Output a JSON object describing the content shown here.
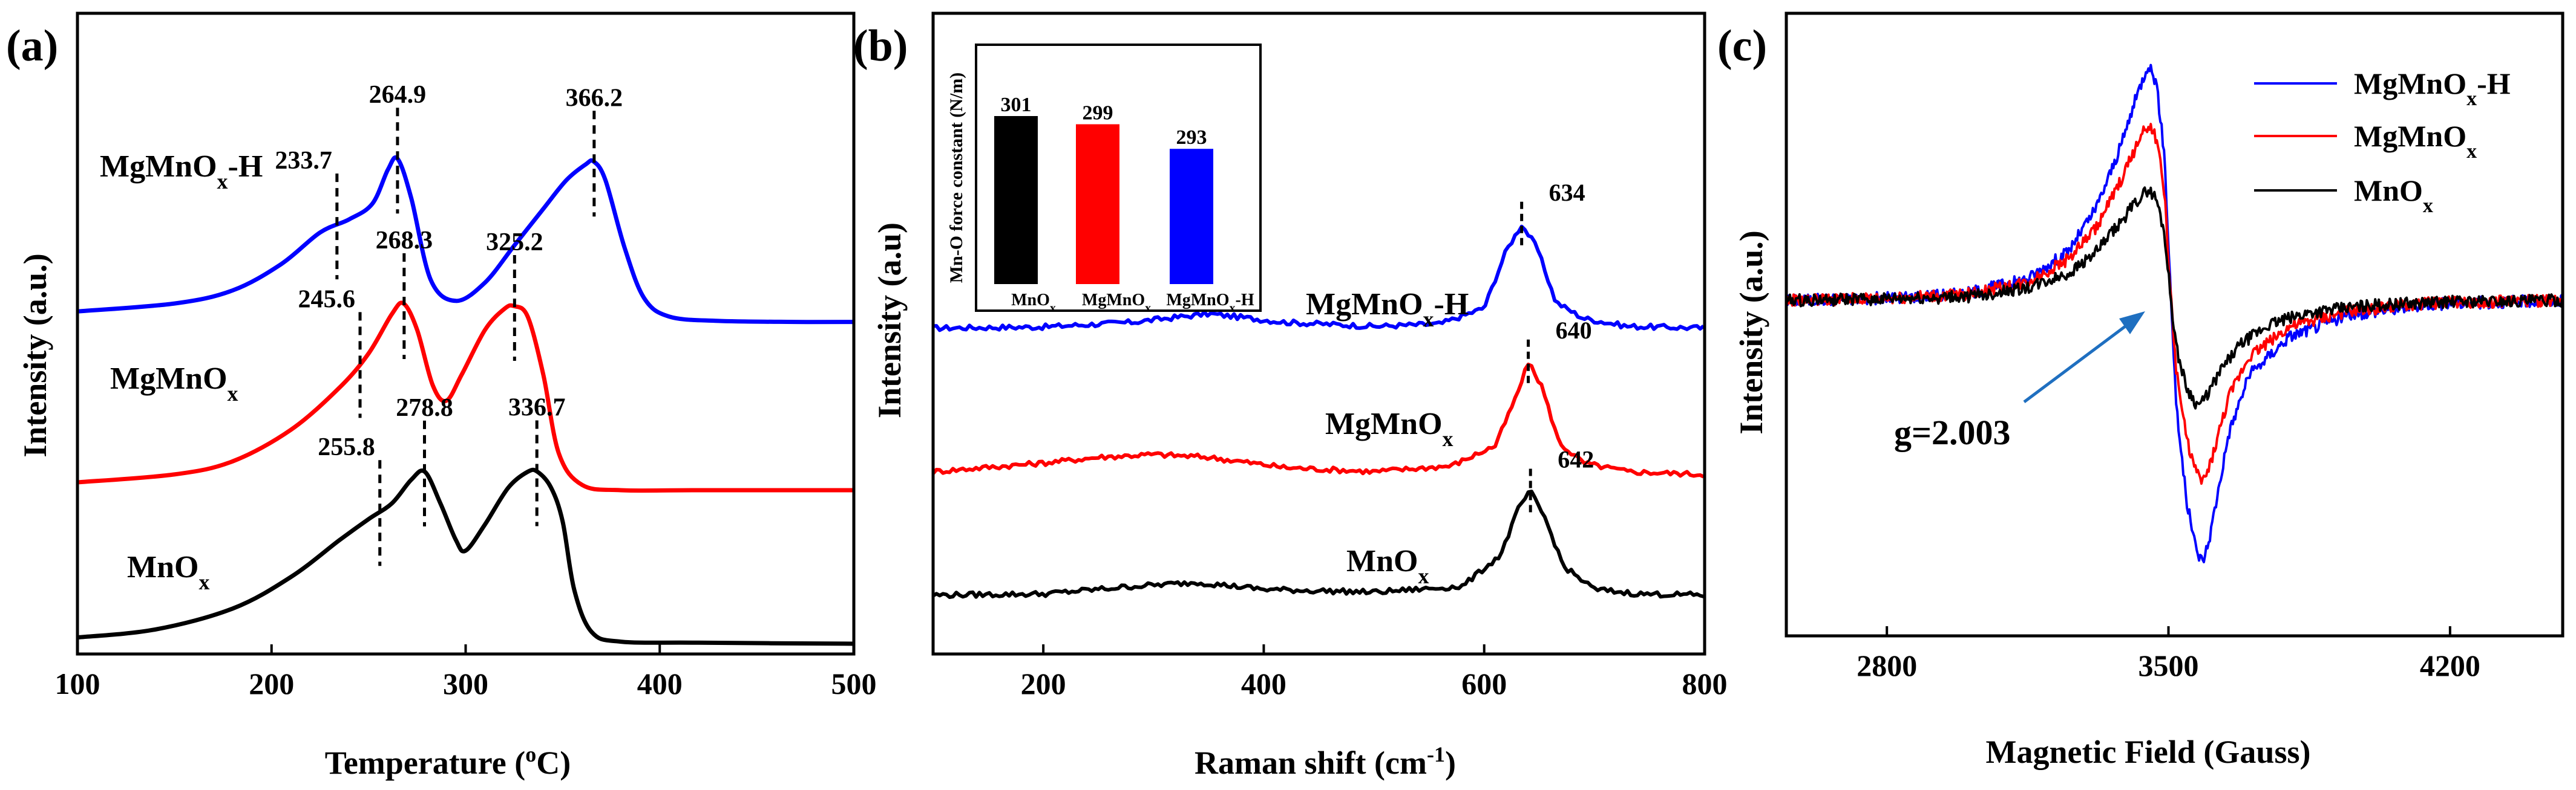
{
  "panels": {
    "a": {
      "label": "(a)",
      "xlabel": "Temperature (°C)",
      "xlabel_parts": {
        "pre": "Temperature (",
        "sup": "o",
        "post": "C)"
      },
      "ylabel": "Intensity (a.u.)",
      "xticks": [
        "100",
        "200",
        "300",
        "400",
        "500"
      ]
    },
    "b": {
      "label": "(b)",
      "xlabel": "Raman shift (cm-1)",
      "xlabel_parts": {
        "pre": "Raman shift (cm",
        "sup": "-1",
        "post": ")"
      },
      "ylabel": "Intensity (a.u)",
      "xticks": [
        "200",
        "400",
        "600",
        "800"
      ]
    },
    "c": {
      "label": "(c)",
      "xlabel": "Magnetic Field (Gauss)",
      "ylabel": "Intensity (a.u.)",
      "xticks": [
        "2800",
        "3500",
        "4200"
      ],
      "annotation": "g=2.003"
    }
  },
  "series_labels": {
    "MgMnOx-H": {
      "base": "MgMnO",
      "sub": "x",
      "tail": "-H"
    },
    "MgMnOx": {
      "base": "MgMnO",
      "sub": "x",
      "tail": ""
    },
    "MnOx": {
      "base": "MnO",
      "sub": "x",
      "tail": ""
    }
  },
  "colors": {
    "MgMnOx-H": "#0000ff",
    "MgMnOx": "#ff0000",
    "MnOx": "#000000"
  },
  "chart_data": [
    {
      "type": "line",
      "title": "(a)",
      "xlabel": "Temperature (°C)",
      "ylabel": "Intensity (a.u.)",
      "xlim": [
        100,
        500
      ],
      "ylim": [
        0,
        10
      ],
      "grid": false,
      "series": [
        {
          "name": "MgMnOx-H",
          "color": "#0000ff",
          "x": [
            100,
            150,
            180,
            205,
            225,
            240,
            252,
            260,
            265,
            272,
            282,
            295,
            310,
            325,
            340,
            352,
            362,
            366,
            372,
            382,
            392,
            405,
            430,
            470,
            500
          ],
          "y": [
            6.4,
            6.55,
            6.8,
            7.3,
            7.9,
            8.15,
            8.45,
            9.1,
            9.3,
            8.55,
            7.0,
            6.6,
            6.95,
            7.65,
            8.35,
            8.9,
            9.2,
            9.25,
            8.9,
            7.6,
            6.65,
            6.3,
            6.22,
            6.2,
            6.2
          ],
          "peaks": [
            {
              "x": 233.7,
              "label": "233.7"
            },
            {
              "x": 264.9,
              "label": "264.9"
            },
            {
              "x": 366.2,
              "label": "366.2"
            }
          ]
        },
        {
          "name": "MgMnOx",
          "color": "#ff0000",
          "x": [
            100,
            150,
            180,
            210,
            235,
            250,
            262,
            268,
            275,
            283,
            290,
            298,
            310,
            320,
            325,
            332,
            340,
            348,
            360,
            380,
            420,
            500
          ],
          "y": [
            3.15,
            3.3,
            3.55,
            4.15,
            4.95,
            5.6,
            6.35,
            6.55,
            6.05,
            5.0,
            4.7,
            5.2,
            6.05,
            6.45,
            6.5,
            6.3,
            5.2,
            3.7,
            3.1,
            3.0,
            3.0,
            3.0
          ],
          "peaks": [
            {
              "x": 245.6,
              "label": "245.6"
            },
            {
              "x": 268.3,
              "label": "268.3"
            },
            {
              "x": 325.2,
              "label": "325.2"
            }
          ]
        },
        {
          "name": "MnOx",
          "color": "#000000",
          "x": [
            100,
            140,
            180,
            210,
            235,
            250,
            262,
            272,
            279,
            287,
            295,
            300,
            310,
            322,
            332,
            337,
            344,
            350,
            356,
            365,
            380,
            420,
            500
          ],
          "y": [
            0.2,
            0.35,
            0.75,
            1.35,
            2.05,
            2.45,
            2.75,
            3.2,
            3.35,
            2.75,
            2.05,
            1.85,
            2.35,
            3.05,
            3.35,
            3.35,
            3.05,
            2.4,
            1.1,
            0.3,
            0.12,
            0.1,
            0.08
          ],
          "peaks": [
            {
              "x": 255.8,
              "label": "255.8"
            },
            {
              "x": 278.8,
              "label": "278.8"
            },
            {
              "x": 336.7,
              "label": "336.7"
            }
          ]
        }
      ]
    },
    {
      "type": "line",
      "title": "(b)",
      "xlabel": "Raman shift (cm-1)",
      "ylabel": "Intensity (a.u)",
      "xlim": [
        100,
        800
      ],
      "ylim": [
        0,
        10
      ],
      "grid": false,
      "series": [
        {
          "name": "MgMnOx-H",
          "color": "#0000ff",
          "x": [
            100,
            200,
            280,
            350,
            420,
            500,
            560,
            600,
            620,
            634,
            648,
            665,
            690,
            730,
            800
          ],
          "y": [
            5.55,
            5.57,
            5.65,
            5.8,
            5.65,
            5.58,
            5.62,
            5.9,
            6.9,
            7.35,
            6.95,
            6.0,
            5.72,
            5.58,
            5.55
          ],
          "peak": {
            "x": 634,
            "label": "634"
          }
        },
        {
          "name": "MgMnOx",
          "color": "#ff0000",
          "x": [
            100,
            200,
            250,
            300,
            350,
            420,
            500,
            570,
            610,
            630,
            640,
            652,
            668,
            690,
            730,
            800
          ],
          "y": [
            3.05,
            3.2,
            3.3,
            3.35,
            3.3,
            3.12,
            3.05,
            3.15,
            3.5,
            4.4,
            4.95,
            4.55,
            3.55,
            3.2,
            3.05,
            3.0
          ],
          "peak": {
            "x": 640,
            "label": "640"
          }
        },
        {
          "name": "MnOx",
          "color": "#000000",
          "x": [
            100,
            200,
            280,
            340,
            400,
            500,
            580,
            615,
            632,
            642,
            655,
            672,
            700,
            740,
            800
          ],
          "y": [
            0.9,
            0.92,
            1.05,
            1.12,
            1.0,
            0.95,
            1.05,
            1.6,
            2.45,
            2.7,
            2.25,
            1.4,
            1.0,
            0.92,
            0.9
          ],
          "peak": {
            "x": 642,
            "label": "642"
          }
        }
      ],
      "inset": {
        "type": "bar",
        "ylabel": "Mn-O force constant (N/m)",
        "ylim": [
          260,
          310
        ],
        "categories": [
          "MnOx",
          "MgMnOx",
          "MgMnOx-H"
        ],
        "values": [
          301,
          299,
          293
        ],
        "value_labels": [
          "301",
          "299",
          "293"
        ],
        "colors": [
          "#000000",
          "#ff0000",
          "#0000ff"
        ]
      }
    },
    {
      "type": "line",
      "title": "(c)",
      "xlabel": "Magnetic Field (Gauss)",
      "ylabel": "Intensity (a.u.)",
      "xlim": [
        2550,
        4480
      ],
      "ylim": [
        -11,
        11
      ],
      "grid": false,
      "legend": "top-right",
      "annotation": {
        "text": "g=2.003",
        "arrow_to_x": 3500
      },
      "series": [
        {
          "name": "MgMnOx-H",
          "color": "#0000ff",
          "x": [
            2550,
            2800,
            3000,
            3150,
            3250,
            3320,
            3380,
            3420,
            3450,
            3470,
            3490,
            3505,
            3520,
            3545,
            3570,
            3585,
            3600,
            3620,
            3650,
            3700,
            3800,
            3950,
            4150,
            4480
          ],
          "y": [
            0,
            0.1,
            0.3,
            0.9,
            2.0,
            3.8,
            6.3,
            8.4,
            9.8,
            9.0,
            6.0,
            0.5,
            -4.5,
            -8.3,
            -10.4,
            -10.8,
            -10.0,
            -8.2,
            -5.5,
            -3.1,
            -1.5,
            -0.6,
            -0.15,
            0
          ]
        },
        {
          "name": "MgMnOx",
          "color": "#ff0000",
          "x": [
            2550,
            2800,
            3000,
            3150,
            3250,
            3320,
            3380,
            3420,
            3450,
            3470,
            3490,
            3505,
            3520,
            3545,
            3570,
            3585,
            3600,
            3620,
            3650,
            3700,
            3800,
            3950,
            4150,
            4480
          ],
          "y": [
            0,
            0.1,
            0.25,
            0.75,
            1.7,
            3.0,
            4.9,
            6.4,
            7.3,
            6.7,
            4.5,
            0.3,
            -3.0,
            -5.7,
            -7.2,
            -7.5,
            -7.0,
            -5.8,
            -4.0,
            -2.3,
            -1.1,
            -0.45,
            -0.1,
            0
          ]
        },
        {
          "name": "MnOx",
          "color": "#000000",
          "x": [
            2550,
            2800,
            3000,
            3150,
            3250,
            3320,
            3380,
            3420,
            3450,
            3470,
            3490,
            3505,
            3520,
            3545,
            3570,
            3585,
            3600,
            3630,
            3680,
            3750,
            3850,
            4000,
            4200,
            4480
          ],
          "y": [
            0,
            0.05,
            0.15,
            0.5,
            1.1,
            2.0,
            3.2,
            4.1,
            4.6,
            4.2,
            2.8,
            0.2,
            -2.0,
            -3.6,
            -4.3,
            -4.2,
            -3.8,
            -2.9,
            -1.8,
            -1.0,
            -0.5,
            -0.2,
            -0.05,
            0
          ]
        }
      ]
    }
  ]
}
